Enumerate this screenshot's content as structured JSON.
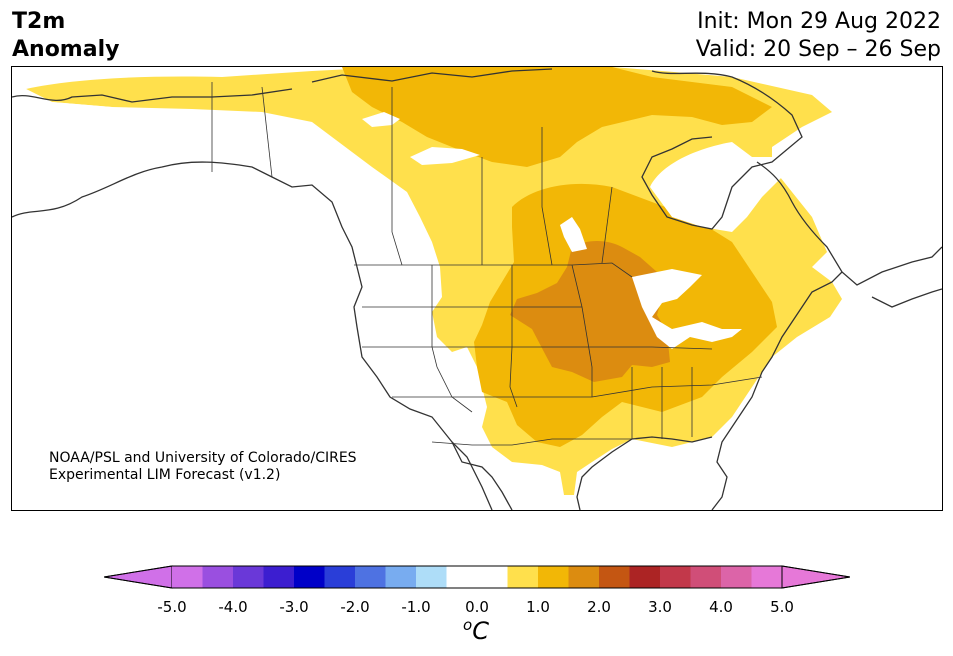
{
  "header": {
    "title_line1": "T2m",
    "title_line2": "Anomaly",
    "init": "Init: Mon 29 Aug 2022",
    "valid": "Valid: 20 Sep – 26 Sep"
  },
  "credit": {
    "line1": "NOAA/PSL and University of Colorado/CIRES",
    "line2": "Experimental LIM Forecast (v1.2)"
  },
  "colorbar": {
    "unit_base": "C",
    "unit_sup": "o",
    "ticks": [
      "-5.0",
      "-4.0",
      "-3.0",
      "-2.0",
      "-1.0",
      "0.0",
      "1.0",
      "2.0",
      "3.0",
      "4.0",
      "5.0"
    ],
    "colors": [
      "#d070e8",
      "#9a4fe0",
      "#6a38d8",
      "#3c1ed0",
      "#0000c8",
      "#2a3ed8",
      "#4e72e2",
      "#78acf0",
      "#aeddf8",
      "#ffffff",
      "#ffffff",
      "#ffe04c",
      "#f2b706",
      "#dc8c10",
      "#c45612",
      "#ac2424",
      "#c2384a",
      "#d04e78",
      "#dc64a8",
      "#e678d8"
    ],
    "under_color": "#d070e8",
    "over_color": "#e678d8"
  },
  "map": {
    "land_color": "#ffffff",
    "anomaly_colors": {
      "c1": "#ffe04c",
      "c2": "#f2b706",
      "c3": "#dc8c10"
    },
    "line_color": "#333333"
  }
}
